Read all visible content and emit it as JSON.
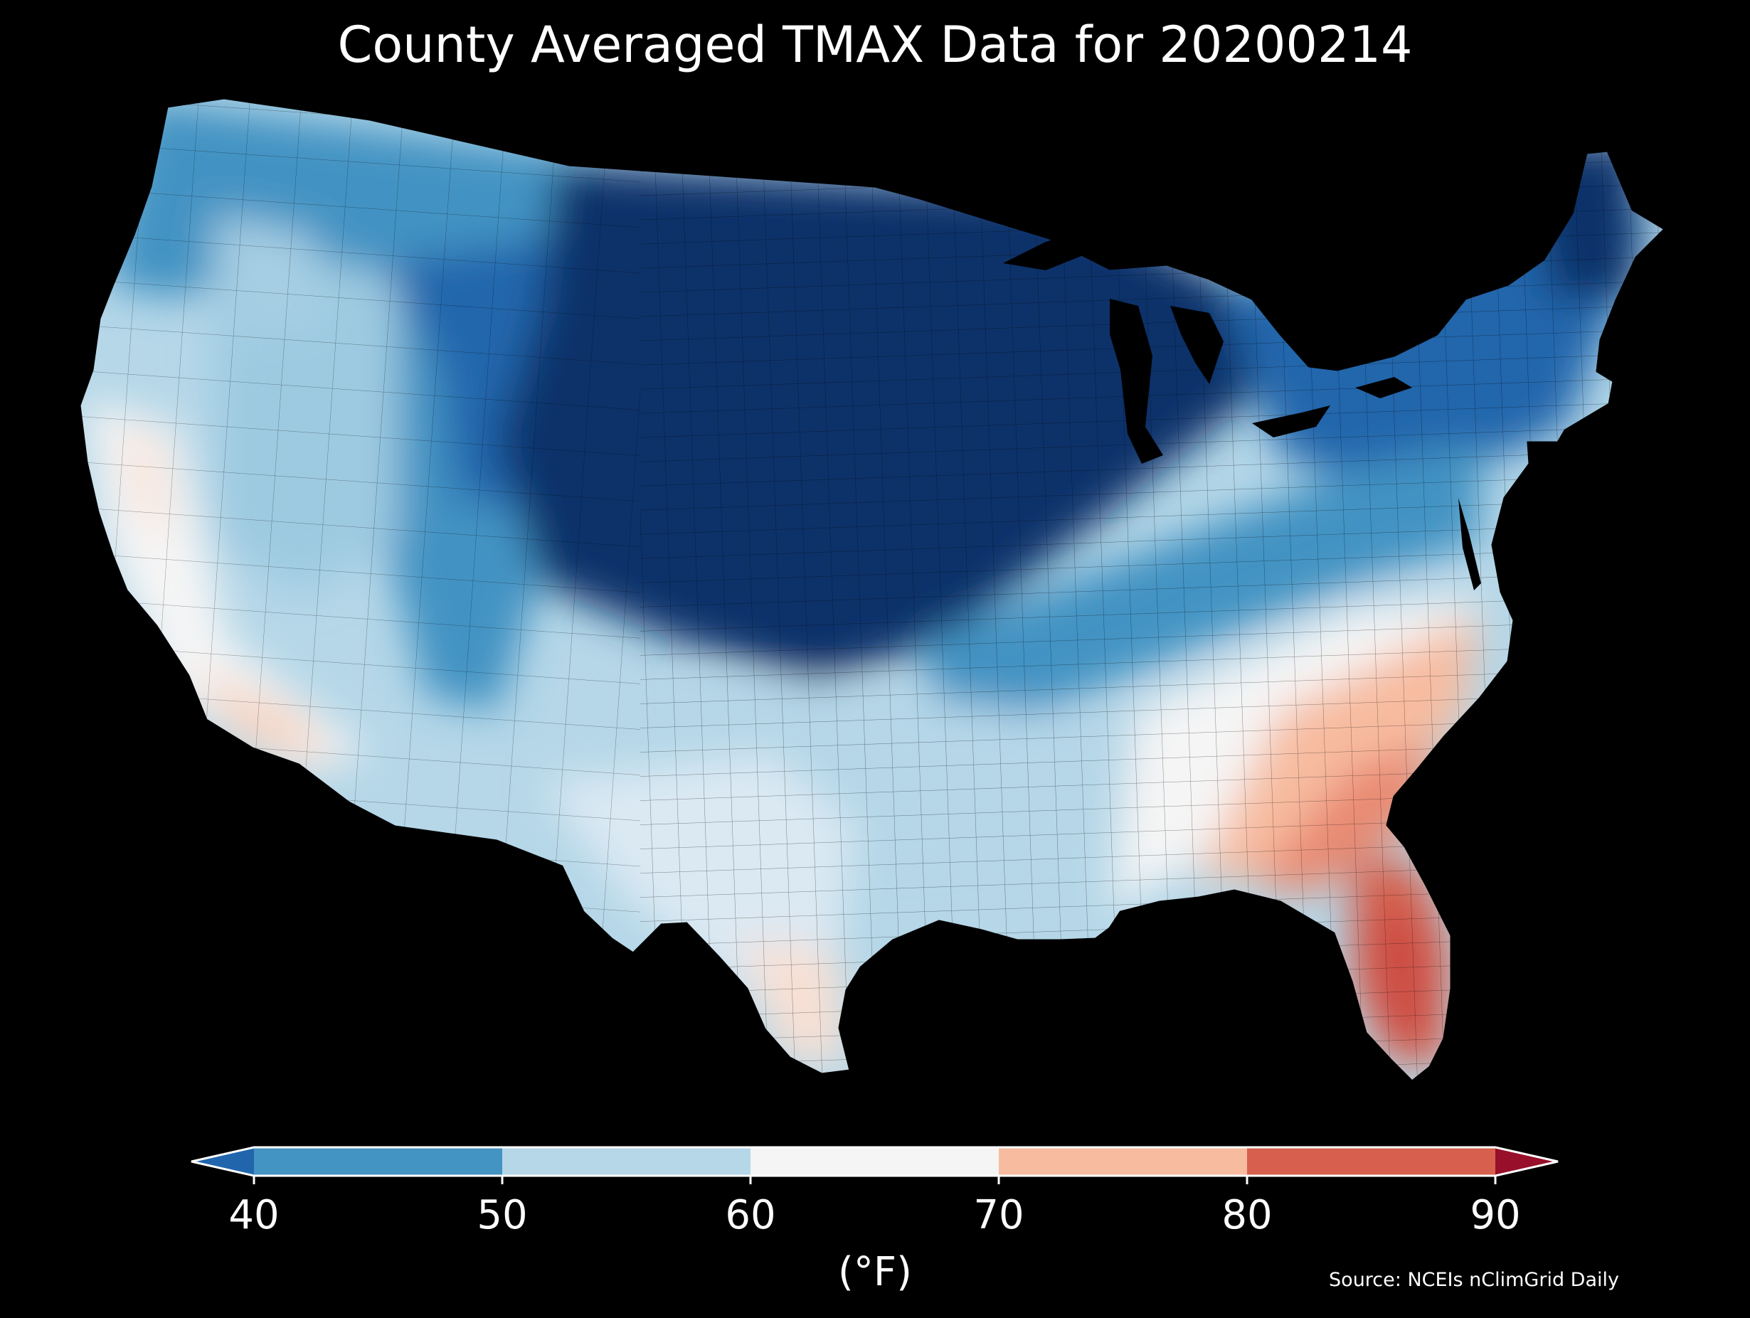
{
  "title": "County Averaged TMAX Data for 20200214",
  "region": "Contiguous United States",
  "colorbar": {
    "ticks": [
      "40",
      "50",
      "60",
      "70",
      "80",
      "90"
    ],
    "unit_label": "(°F)",
    "extend": "both",
    "bins": [
      {
        "min": null,
        "max": 40,
        "color": "#2166ac"
      },
      {
        "min": 40,
        "max": 50,
        "color": "#4393c3"
      },
      {
        "min": 50,
        "max": 60,
        "color": "#b5d7e8"
      },
      {
        "min": 60,
        "max": 70,
        "color": "#f5f5f5"
      },
      {
        "min": 70,
        "max": 80,
        "color": "#f7bca0"
      },
      {
        "min": 80,
        "max": 90,
        "color": "#d6604d"
      },
      {
        "min": 90,
        "max": null,
        "color": "#970f2a"
      }
    ]
  },
  "source": "Source: NCEIs nClimGrid Daily",
  "colors": {
    "background": "#000000",
    "coldest": "#08306b",
    "text": "#ffffff"
  }
}
